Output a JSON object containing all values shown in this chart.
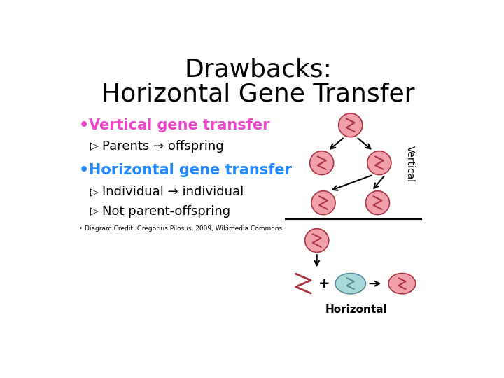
{
  "title_line1": "Drawbacks:",
  "title_line2": "Horizontal Gene Transfer",
  "title_fontsize": 26,
  "bg_color": "#ffffff",
  "bullet1_text": "Vertical gene transfer",
  "bullet1_color": "#ee44cc",
  "bullet2_text": "Horizontal gene transfer",
  "bullet2_color": "#2288ff",
  "sub1_text": "Parents → offspring",
  "sub2a_text": "Individual → individual",
  "sub2b_text": "Not parent-offspring",
  "credit_text": "Diagram Credit: Gregorius Pilosus, 2009, Wikimedia Commons",
  "horiz_label": "Horizontal",
  "vert_label": "Vertical",
  "cell_color_pink": "#f0a0a8",
  "cell_color_blue": "#a8d8d8",
  "cell_outline": "#aa3344"
}
